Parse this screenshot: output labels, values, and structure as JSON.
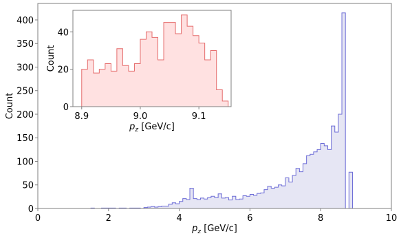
{
  "chart_data": [
    {
      "id": "main",
      "type": "histogram",
      "xlabel_main": "p",
      "xlabel_sub": "z",
      "xlabel_unit": " [GeV/c]",
      "ylabel": "Count",
      "xlim": [
        0,
        10
      ],
      "ylim": [
        0,
        435
      ],
      "x_ticks": [
        0,
        2,
        4,
        6,
        8,
        10
      ],
      "y_ticks": [
        0,
        50,
        100,
        150,
        200,
        250,
        300,
        350,
        400
      ],
      "line_color": "#6b6bd6",
      "fill_color": "#e6e6f4",
      "bin_start": 1.5,
      "bin_width": 0.1,
      "values": [
        1,
        0,
        0,
        1,
        1,
        1,
        1,
        0,
        1,
        1,
        0,
        1,
        1,
        1,
        0,
        2,
        3,
        4,
        3,
        4,
        5,
        5,
        9,
        12,
        10,
        15,
        21,
        19,
        43,
        21,
        19,
        22,
        20,
        23,
        26,
        23,
        31,
        22,
        23,
        18,
        26,
        19,
        20,
        27,
        26,
        30,
        28,
        32,
        33,
        40,
        47,
        43,
        45,
        50,
        48,
        65,
        56,
        70,
        85,
        78,
        95,
        112,
        115,
        120,
        125,
        138,
        133,
        125,
        175,
        162,
        200,
        415,
        0,
        77
      ]
    },
    {
      "id": "inset",
      "type": "histogram",
      "xlabel_main": "p",
      "xlabel_sub": "z",
      "xlabel_unit": " [GeV/c]",
      "ylabel": "Count",
      "xlim": [
        8.885,
        9.155
      ],
      "ylim": [
        0,
        51.5
      ],
      "x_ticks": [
        8.9,
        9.0,
        9.1
      ],
      "x_tick_labels": [
        "8.9",
        "9.0",
        "9.1"
      ],
      "y_ticks": [
        0,
        20,
        40
      ],
      "line_color": "#e56b6b",
      "fill_color": "#ffe1e1",
      "bin_start": 8.9,
      "bin_width": 0.01,
      "values": [
        20,
        25,
        18,
        20,
        23,
        19,
        31,
        22,
        19,
        23,
        36,
        40,
        37,
        25,
        45,
        45,
        39,
        49,
        43,
        38,
        34,
        25,
        30,
        9,
        3
      ]
    }
  ]
}
